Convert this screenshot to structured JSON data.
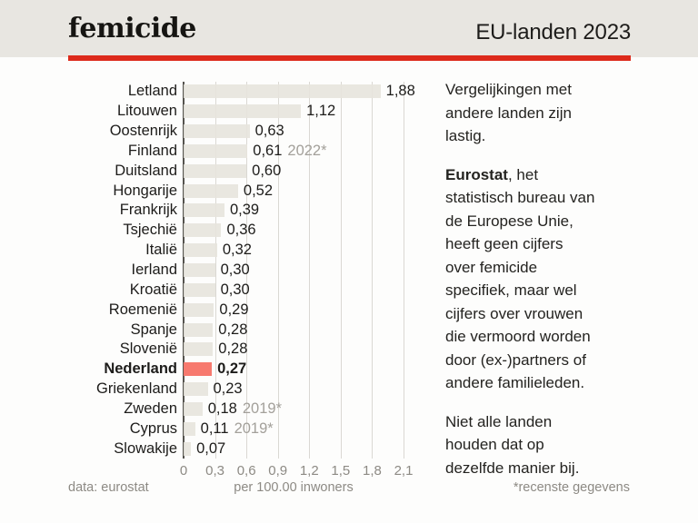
{
  "header": {
    "title": "femicide",
    "edition": "EU-landen 2023"
  },
  "accent": {
    "red": "#dd2a1b",
    "header_background": "#e8e6e1",
    "bar_color": "#e9e6df",
    "highlight_color": "#f7796e",
    "muted_text": "#8d8a84"
  },
  "chart_data": {
    "type": "bar",
    "orientation": "horizontal",
    "categories": [
      "Letland",
      "Litouwen",
      "Oostenrijk",
      "Finland",
      "Duitsland",
      "Hongarije",
      "Frankrijk",
      "Tsjechië",
      "Italië",
      "Ierland",
      "Kroatië",
      "Roemenië",
      "Spanje",
      "Slovenië",
      "Nederland",
      "Griekenland",
      "Zweden",
      "Cyprus",
      "Slowakije"
    ],
    "values": [
      1.88,
      1.12,
      0.63,
      0.61,
      0.6,
      0.52,
      0.39,
      0.36,
      0.32,
      0.3,
      0.3,
      0.29,
      0.28,
      0.28,
      0.27,
      0.23,
      0.18,
      0.11,
      0.07
    ],
    "value_labels": [
      "1,88",
      "1,12",
      "0,63",
      "0,61",
      "0,60",
      "0,52",
      "0,39",
      "0,36",
      "0,32",
      "0,30",
      "0,30",
      "0,29",
      "0,28",
      "0,28",
      "0,27",
      "0,23",
      "0,18",
      "0,11",
      "0,07"
    ],
    "notes": [
      "",
      "",
      "",
      "2022*",
      "",
      "",
      "",
      "",
      "",
      "",
      "",
      "",
      "",
      "",
      "",
      "",
      "2019*",
      "2019*",
      ""
    ],
    "highlight_index": 14,
    "highlight_category": "Nederland",
    "x_tick_labels": [
      "0",
      "0,3",
      "0,6",
      "0,9",
      "1,2",
      "1,5",
      "1,8",
      "2,1"
    ],
    "x_tick_values": [
      0,
      0.3,
      0.6,
      0.9,
      1.2,
      1.5,
      1.8,
      2.1
    ],
    "xlim": [
      0,
      2.1
    ],
    "grid": true,
    "legend": false,
    "xlabel": "per 100.00 inwoners",
    "source": "data: eurostat",
    "footnote": "*recenste gegevens"
  },
  "sidebar": {
    "para1": "Vergelijkingen met\nandere landen zijn\nlastig.",
    "para2_bold": "Eurostat",
    "para2_rest": ", het\nstatistisch bureau van\nde Europese Unie,\nheeft geen cijfers\nover femicide\nspecifiek, maar wel\ncijfers over vrouwen\ndie vermoord worden\ndoor (ex-)partners of\nandere familieleden.",
    "para3": "Niet alle landen\nhouden dat op\ndezelfde manier bij."
  }
}
